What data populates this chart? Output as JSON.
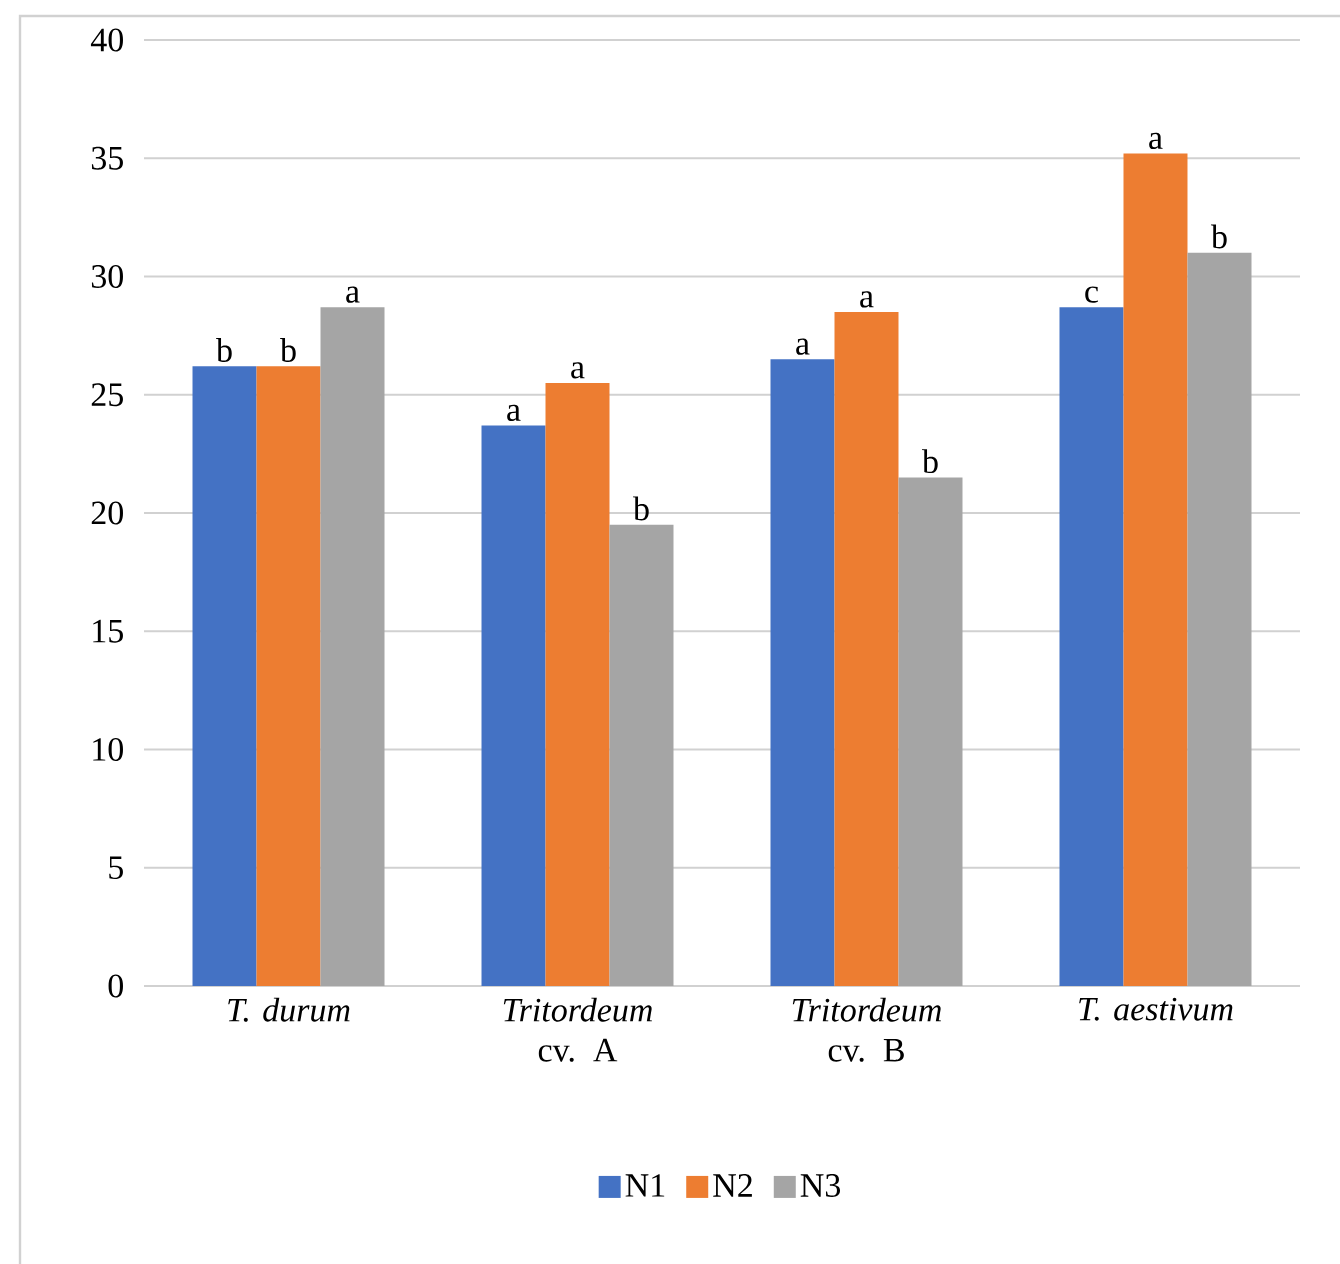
{
  "chart_data": {
    "type": "bar",
    "categories": [
      "*T. durum*",
      "*Tritordeum* cv. A",
      "*Tritordeum* cv. B",
      "*T. aestivum*"
    ],
    "series": [
      {
        "name": "N1",
        "color": "#4472c4",
        "values": [
          26.2,
          23.7,
          26.5,
          28.7
        ],
        "value_labels": [
          "b",
          "a",
          "a",
          "c"
        ]
      },
      {
        "name": "N2",
        "color": "#ed7d31",
        "values": [
          26.2,
          25.5,
          28.5,
          35.2
        ],
        "value_labels": [
          "b",
          "a",
          "a",
          "a"
        ]
      },
      {
        "name": "N3",
        "color": "#a5a5a5",
        "values": [
          28.7,
          19.5,
          21.5,
          31.0
        ],
        "value_labels": [
          "a",
          "b",
          "b",
          "b"
        ]
      }
    ],
    "ylim": [
      0,
      40
    ],
    "yticks": [
      0,
      5,
      10,
      15,
      20,
      25,
      30,
      35,
      40
    ],
    "grid": "y",
    "legend": "bottom"
  }
}
